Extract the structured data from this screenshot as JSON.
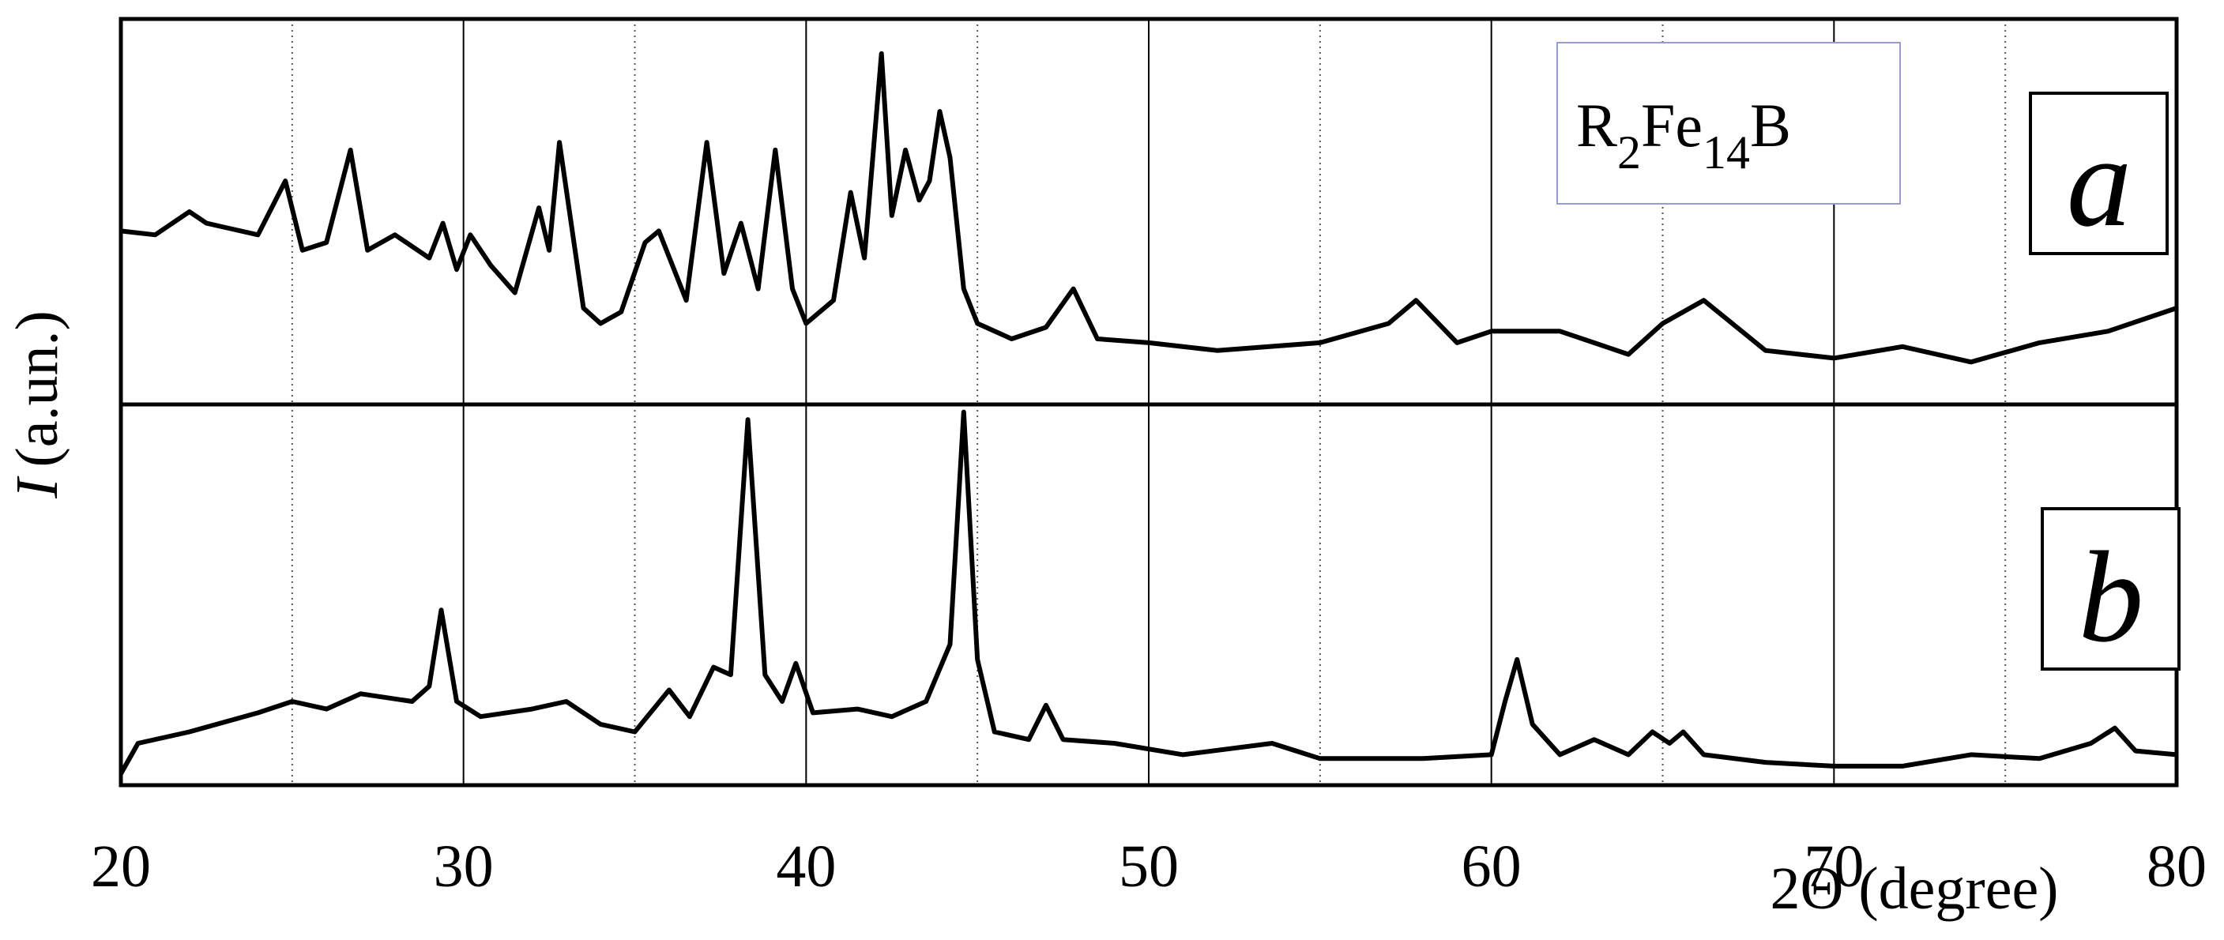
{
  "chart_data": [
    {
      "type": "line",
      "panel_label": "a",
      "annotation_parts": [
        "R",
        "2",
        "Fe",
        "14",
        "B"
      ],
      "ylabel": {
        "symbol": "I",
        "unit": "(a.un.)"
      },
      "xlim": [
        20,
        80
      ],
      "ylim": [
        0,
        100
      ],
      "xticks": [
        20,
        30,
        40,
        50,
        60,
        70,
        80
      ],
      "minor_xticks": [
        25,
        35,
        45,
        55,
        65,
        75
      ],
      "color": "#000000",
      "x": [
        20,
        21,
        22,
        22.5,
        23,
        24,
        24.8,
        25.3,
        26,
        26.7,
        27.2,
        28,
        29,
        29.4,
        29.8,
        30.2,
        30.8,
        31.5,
        32.2,
        32.5,
        32.8,
        33.5,
        34,
        34.6,
        35.3,
        35.7,
        36.5,
        37.1,
        37.6,
        38.1,
        38.6,
        39.1,
        39.6,
        40,
        40.8,
        41.3,
        41.7,
        42.2,
        42.5,
        42.9,
        43.3,
        43.6,
        43.9,
        44.2,
        44.6,
        45,
        46,
        47,
        47.8,
        48.5,
        50,
        52,
        55,
        57,
        57.8,
        59,
        60,
        62,
        64,
        65,
        66.2,
        68,
        70,
        72,
        74,
        76,
        78,
        80
      ],
      "values": [
        45,
        44,
        50,
        47,
        46,
        44,
        58,
        40,
        42,
        66,
        40,
        44,
        38,
        47,
        35,
        44,
        36,
        29,
        51,
        40,
        68,
        25,
        21,
        24,
        42,
        45,
        27,
        68,
        34,
        47,
        30,
        66,
        30,
        21,
        27,
        55,
        38,
        91,
        49,
        66,
        53,
        58,
        76,
        64,
        30,
        21,
        17,
        20,
        30,
        17,
        16,
        14,
        16,
        21,
        27,
        16,
        19,
        19,
        13,
        21,
        27,
        14,
        12,
        15,
        11,
        16,
        19,
        25
      ]
    },
    {
      "type": "line",
      "panel_label": "b",
      "xlabel": "2Θ (degree)",
      "xlim": [
        20,
        80
      ],
      "ylim": [
        0,
        100
      ],
      "xticks": [
        20,
        30,
        40,
        50,
        60,
        70,
        80
      ],
      "minor_xticks": [
        25,
        35,
        45,
        55,
        65,
        75
      ],
      "color": "#000000",
      "x": [
        20,
        20.5,
        22,
        24,
        25,
        26,
        27,
        28.5,
        29,
        29.35,
        29.8,
        30.5,
        32,
        33,
        34,
        35,
        36,
        36.6,
        37.3,
        37.8,
        38.3,
        38.8,
        39.3,
        39.7,
        40.2,
        41.5,
        42.5,
        43.5,
        44.2,
        44.6,
        45,
        45.5,
        46.5,
        47,
        47.5,
        49,
        51,
        53.6,
        55,
        58,
        60,
        60.4,
        60.75,
        61.2,
        62,
        63,
        64,
        64.7,
        65.2,
        65.6,
        66.2,
        68,
        70,
        72,
        74,
        76,
        77.5,
        78.2,
        78.8,
        80
      ],
      "values": [
        3,
        11,
        14,
        19,
        22,
        20,
        24,
        22,
        26,
        46,
        22,
        18,
        20,
        22,
        16,
        14,
        25,
        18,
        31,
        29,
        96,
        29,
        22,
        32,
        19,
        20,
        18,
        22,
        37,
        98,
        33,
        14,
        12,
        21,
        12,
        11,
        8,
        11,
        7,
        7,
        8,
        22,
        33,
        16,
        8,
        12,
        8,
        14,
        11,
        14,
        8,
        6,
        5,
        5,
        8,
        7,
        11,
        15,
        9,
        8
      ]
    }
  ]
}
